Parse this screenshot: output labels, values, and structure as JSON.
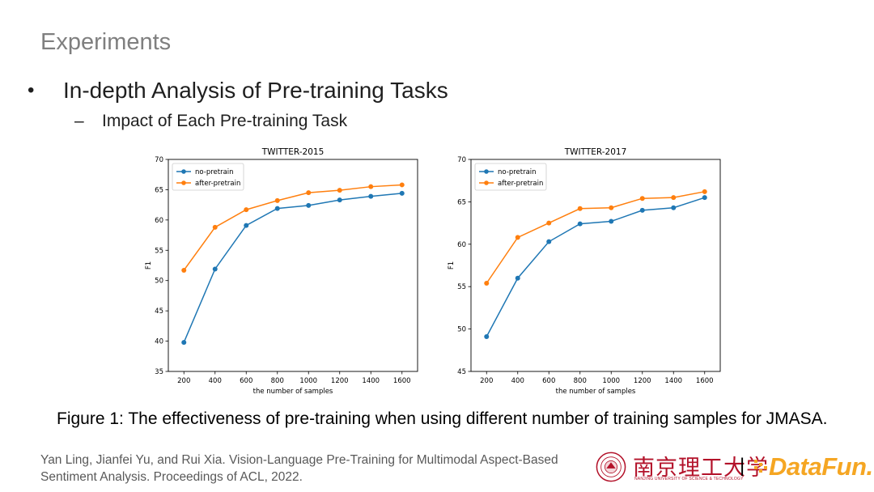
{
  "slide": {
    "title": "Experiments",
    "bullet": "In-depth Analysis of Pre-training Tasks",
    "sub_bullet": "Impact of Each Pre-training Task",
    "bullet_symbol": "•",
    "dash_symbol": "–",
    "caption": "Figure 1: The effectiveness of pre-training when using different number of training samples for JMASA.",
    "citation_line1": "Yan Ling, Jianfei Yu, and Rui Xia. Vision-Language Pre-Training for Multimodal Aspect-Based",
    "citation_line2": "Sentiment Analysis. Proceedings of ACL, 2022."
  },
  "logos": {
    "university_name": "南京理工大学",
    "university_sub": "NANJING UNIVERSITY OF SCIENCE & TECHNOLOGY",
    "separator": "|",
    "datafun": "DataFun.",
    "university_color": "#b3122a",
    "datafun_color": "#f5a623"
  },
  "chart_data": [
    {
      "type": "line",
      "title": "TWITTER-2015",
      "xlabel": "the number of samples",
      "ylabel": "F1",
      "x": [
        200,
        400,
        600,
        800,
        1000,
        1200,
        1400,
        1600
      ],
      "xticks": [
        "200",
        "400",
        "600",
        "800",
        "1000",
        "1200",
        "1400",
        "1600"
      ],
      "yticks": [
        "35",
        "40",
        "45",
        "50",
        "55",
        "60",
        "65",
        "70"
      ],
      "ylim": [
        35,
        70
      ],
      "legend": "top-left",
      "grid": false,
      "series": [
        {
          "name": "no-pretrain",
          "color": "#1f77b4",
          "values": [
            39.8,
            51.9,
            59.1,
            61.9,
            62.4,
            63.3,
            63.9,
            64.4
          ]
        },
        {
          "name": "after-pretrain",
          "color": "#ff7f0e",
          "values": [
            51.7,
            58.8,
            61.7,
            63.2,
            64.5,
            64.9,
            65.5,
            65.8
          ]
        }
      ]
    },
    {
      "type": "line",
      "title": "TWITTER-2017",
      "xlabel": "the number of samples",
      "ylabel": "F1",
      "x": [
        200,
        400,
        600,
        800,
        1000,
        1200,
        1400,
        1600
      ],
      "xticks": [
        "200",
        "400",
        "600",
        "800",
        "1000",
        "1200",
        "1400",
        "1600"
      ],
      "yticks": [
        "45",
        "50",
        "55",
        "60",
        "65",
        "70"
      ],
      "ylim": [
        45,
        70
      ],
      "legend": "top-left",
      "grid": false,
      "series": [
        {
          "name": "no-pretrain",
          "color": "#1f77b4",
          "values": [
            49.1,
            56.0,
            60.3,
            62.4,
            62.7,
            64.0,
            64.3,
            65.5
          ]
        },
        {
          "name": "after-pretrain",
          "color": "#ff7f0e",
          "values": [
            55.4,
            60.8,
            62.5,
            64.2,
            64.3,
            65.4,
            65.5,
            66.2
          ]
        }
      ]
    }
  ]
}
